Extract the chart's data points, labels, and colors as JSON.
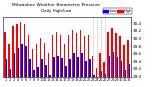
{
  "title": "Milwaukee Weather Barometric Pressure",
  "subtitle": "Daily High/Low",
  "ylim": [
    29.0,
    30.55
  ],
  "yticks": [
    29.0,
    29.2,
    29.4,
    29.6,
    29.8,
    30.0,
    30.2,
    30.4
  ],
  "high_color": "#FF0000",
  "low_color": "#0000FF",
  "background_color": "#FFFFFF",
  "legend_high": "High",
  "legend_low": "Low",
  "highs": [
    30.18,
    29.85,
    30.32,
    30.38,
    30.42,
    30.38,
    30.1,
    29.72,
    29.85,
    30.02,
    29.88,
    29.62,
    30.08,
    30.18,
    30.08,
    29.85,
    30.08,
    30.22,
    30.15,
    30.22,
    30.05,
    30.08,
    29.55,
    29.22,
    29.62,
    29.38,
    30.18,
    30.28,
    30.15,
    30.05,
    29.82,
    29.95
  ],
  "lows": [
    29.45,
    29.2,
    29.62,
    29.75,
    29.85,
    29.8,
    29.45,
    29.18,
    29.25,
    29.45,
    29.3,
    29.05,
    29.52,
    29.55,
    29.48,
    29.28,
    29.45,
    29.62,
    29.52,
    29.62,
    29.42,
    29.45,
    29.05,
    28.98,
    29.15,
    29.08,
    29.55,
    29.65,
    29.52,
    29.42,
    29.18,
    29.32
  ],
  "dotted_indices": [
    22,
    23,
    24,
    25
  ],
  "xlabels": [
    "1",
    "2",
    "3",
    "4",
    "5",
    "6",
    "7",
    "8",
    "9",
    "10",
    "11",
    "12",
    "13",
    "14",
    "15",
    "16",
    "17",
    "18",
    "19",
    "20",
    "21",
    "22",
    "23",
    "24",
    "25",
    "26",
    "27",
    "28",
    "29",
    "30",
    "31",
    "32"
  ],
  "n_bars": 32
}
